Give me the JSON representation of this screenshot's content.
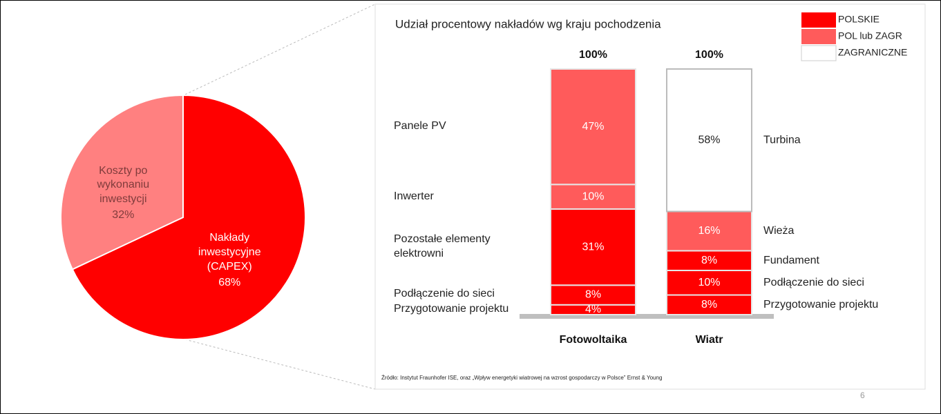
{
  "chart_data": [
    {
      "type": "pie",
      "categories": [
        "Nakłady inwestycyjne (CAPEX)",
        "Koszty po wykonaniu inwestycji"
      ],
      "values": [
        68,
        32
      ],
      "value_labels": [
        "68%",
        "32%"
      ],
      "colors": [
        "#ff0000",
        "#ff8080"
      ],
      "text_colors": [
        "#ffffff",
        "#7f3b3b"
      ]
    },
    {
      "type": "stacked_bar",
      "title": "Udział procentowy nakładów wg kraju pochodzenia",
      "legend": [
        {
          "name": "POLSKIE",
          "color": "#ff0000"
        },
        {
          "name": "POL lub ZAGR",
          "color": "#ff5b5b"
        },
        {
          "name": "ZAGRANICZNE",
          "color": "#ffffff"
        }
      ],
      "bars": [
        {
          "name": "Fotowoltaika",
          "total": 100,
          "total_label": "100%",
          "segments": [
            {
              "name": "Przygotowanie projektu",
              "value": 4,
              "value_label": "4%",
              "color": "#ff0000"
            },
            {
              "name": "Podłączenie do sieci",
              "value": 8,
              "value_label": "8%",
              "color": "#ff0000"
            },
            {
              "name": "Pozostałe elementy elektrowni",
              "value": 31,
              "value_label": "31%",
              "color": "#ff0000"
            },
            {
              "name": "Inwerter",
              "value": 10,
              "value_label": "10%",
              "color": "#ff5b5b"
            },
            {
              "name": "Panele PV",
              "value": 47,
              "value_label": "47%",
              "color": "#ff5b5b"
            }
          ]
        },
        {
          "name": "Wiatr",
          "total": 100,
          "total_label": "100%",
          "segments": [
            {
              "name": "Przygotowanie projektu",
              "value": 8,
              "value_label": "8%",
              "color": "#ff0000"
            },
            {
              "name": "Podłączenie do sieci",
              "value": 10,
              "value_label": "10%",
              "color": "#ff0000"
            },
            {
              "name": "Fundament",
              "value": 8,
              "value_label": "8%",
              "color": "#ff0000"
            },
            {
              "name": "Wieża",
              "value": 16,
              "value_label": "16%",
              "color": "#ff5b5b"
            },
            {
              "name": "Turbina",
              "value": 58,
              "value_label": "58%",
              "color": "#ffffff"
            }
          ]
        }
      ],
      "source": "Źródło: Instytut Fraunhofer ISE, oraz „Wpływ energetyki wiatrowej na wzrost gospodarczy w Polsce” Ernst & Young"
    }
  ],
  "page_number": "6"
}
